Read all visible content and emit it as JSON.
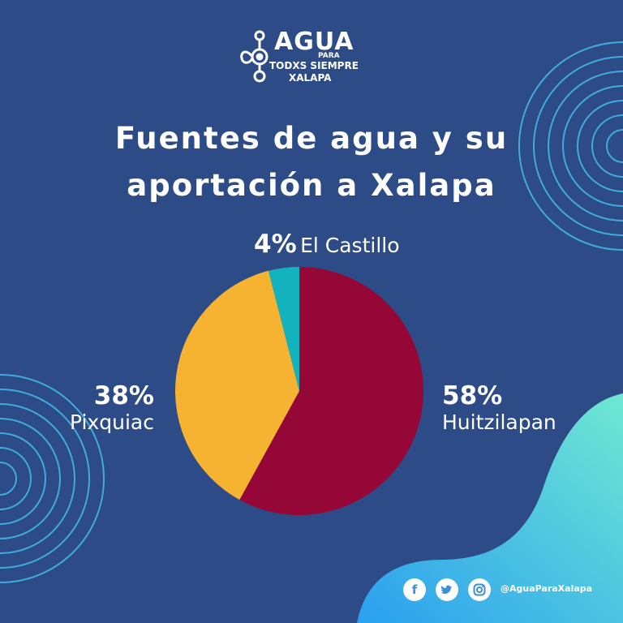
{
  "logo": {
    "word": "AGUA",
    "para": "PARA",
    "line2": "TODXS SIEMPRE",
    "line3": "XALAPA"
  },
  "title": {
    "line1": "Fuentes de agua y su",
    "line2": "aportación a Xalapa"
  },
  "chart_data": {
    "type": "pie",
    "title": "Fuentes de agua y su aportación a Xalapa",
    "slices": [
      {
        "label": "Huitzilapan",
        "value": 58,
        "display": "58%",
        "color": "#950737"
      },
      {
        "label": "Pixquiac",
        "value": 38,
        "display": "38%",
        "color": "#f6b332"
      },
      {
        "label": "El Castillo",
        "value": 4,
        "display": "4%",
        "color": "#12b3bd"
      }
    ],
    "start": "12 o'clock, clockwise"
  },
  "footer": {
    "facebook_icon": "facebook-icon",
    "twitter_icon": "twitter-icon",
    "instagram_icon": "instagram-icon",
    "handle": "@AguaParaXalapa"
  },
  "colors": {
    "background": "#2d4b86",
    "accent_wave_start": "#2aa1ec",
    "accent_wave_end": "#6ee6d4",
    "rings": "#43b6e6"
  }
}
